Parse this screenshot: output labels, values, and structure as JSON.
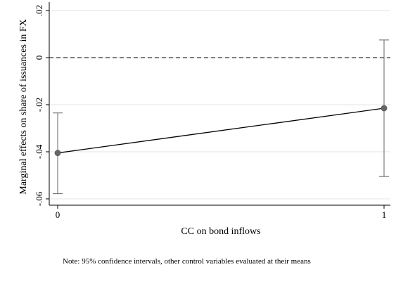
{
  "chart_data": {
    "type": "line",
    "xlabel": "CC on bond inflows",
    "ylabel": "Marginal effects on share of issuances in FX",
    "note": "Note: 95% confidence intervals, other control variables evaluated at their means",
    "x": [
      0,
      1
    ],
    "x_ticks": [
      0,
      1
    ],
    "x_tick_labels": [
      "0",
      "1"
    ],
    "xlim": [
      -0.01,
      1.01
    ],
    "ylim": [
      -0.063,
      0.021
    ],
    "y_ticks": [
      0.02,
      0,
      -0.02,
      -0.04,
      -0.06
    ],
    "y_tick_labels": [
      ".02",
      "0",
      "-.02",
      "-.04",
      "-.06"
    ],
    "reference_line": {
      "y": 0,
      "style": "dashed"
    },
    "grid": true,
    "series": [
      {
        "values": [
          -0.0405,
          -0.0215
        ],
        "ci_lower": [
          -0.0578,
          -0.0505
        ],
        "ci_upper": [
          -0.0235,
          0.0075
        ]
      }
    ],
    "colors": {
      "line": "#000000",
      "marker": "#666666",
      "ci": "#666666",
      "grid": "#e6e6e6",
      "axis": "#000000"
    }
  }
}
